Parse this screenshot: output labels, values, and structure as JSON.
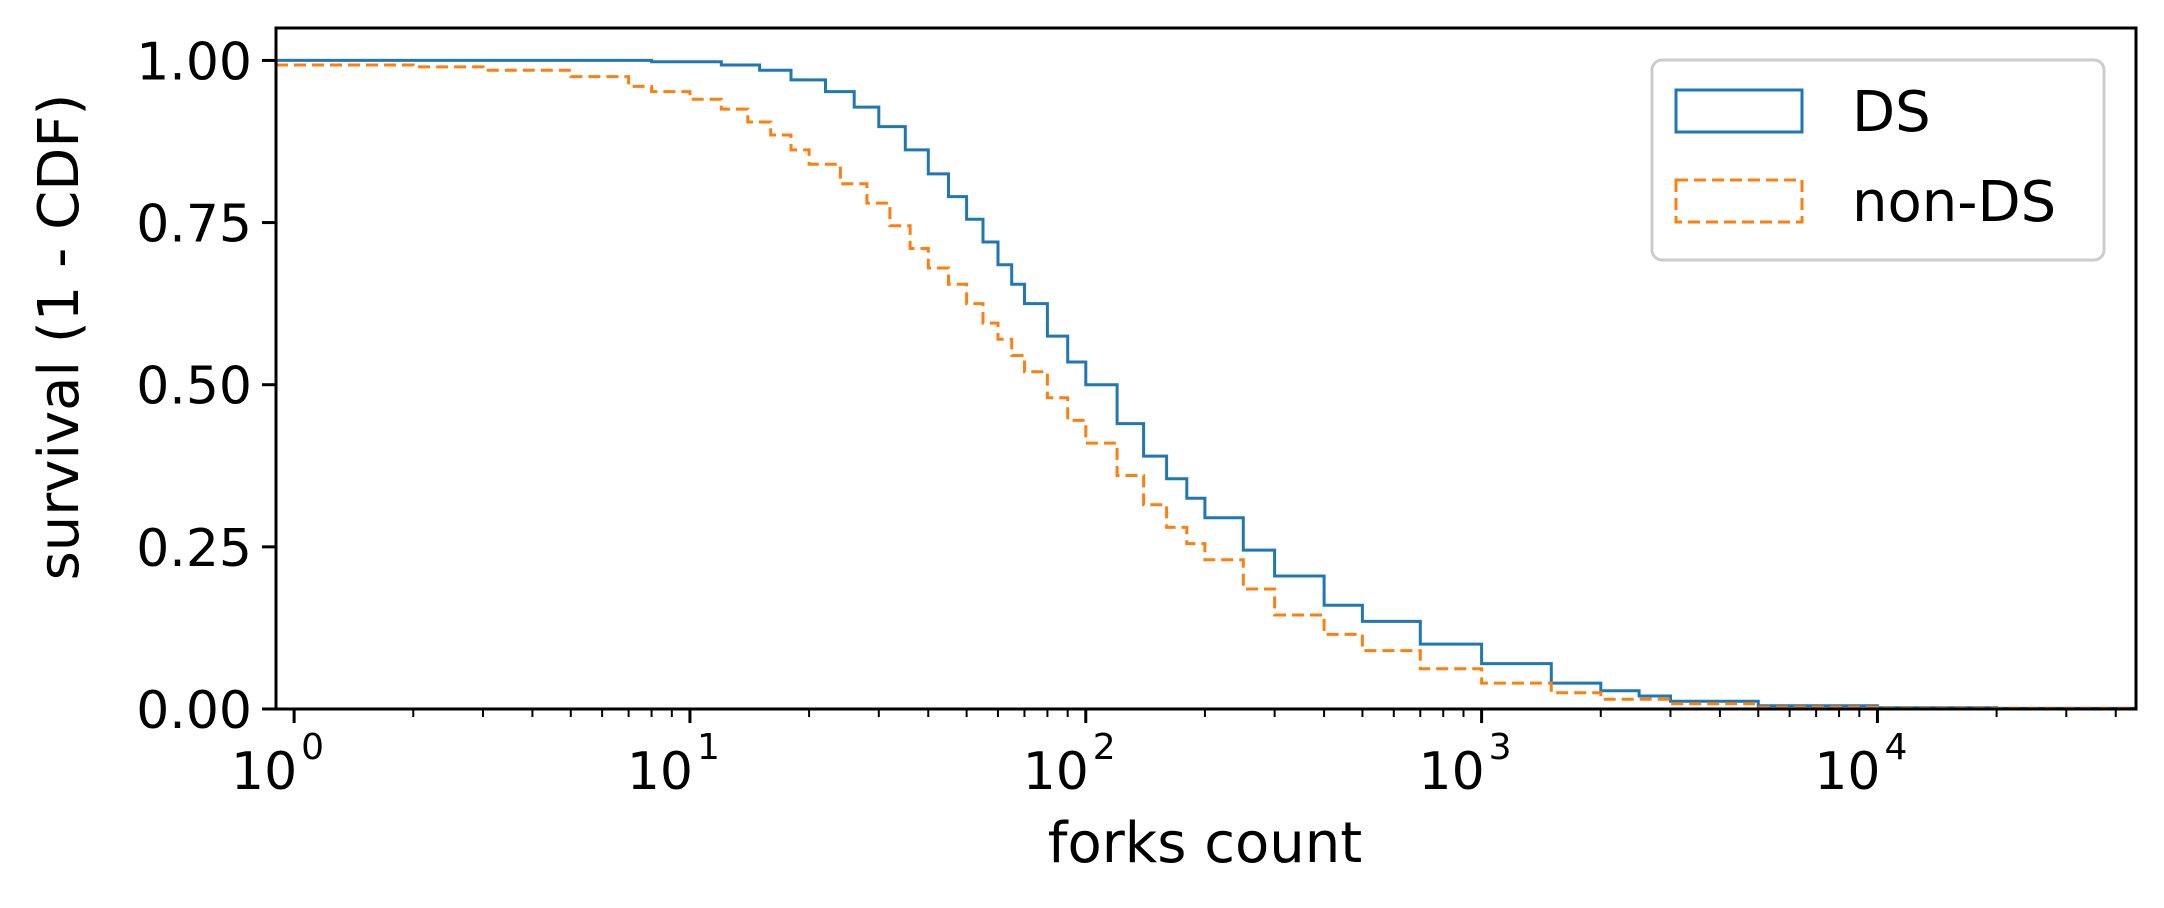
{
  "chart_data": {
    "type": "line",
    "subtype": "step",
    "title": "",
    "xlabel": "forks count",
    "ylabel": "survival (1 - CDF)",
    "xscale": "log",
    "xlim": [
      0.9,
      45000
    ],
    "ylim": [
      0,
      1.05
    ],
    "grid": false,
    "legend_position": "top-right",
    "x_ticks": [
      {
        "value": 1,
        "base": "10",
        "exp": "0"
      },
      {
        "value": 10,
        "base": "10",
        "exp": "1"
      },
      {
        "value": 100,
        "base": "10",
        "exp": "2"
      },
      {
        "value": 1000,
        "base": "10",
        "exp": "3"
      },
      {
        "value": 10000,
        "base": "10",
        "exp": "4"
      }
    ],
    "y_ticks": [
      {
        "value": 0.0,
        "label": "0.00"
      },
      {
        "value": 0.25,
        "label": "0.25"
      },
      {
        "value": 0.5,
        "label": "0.50"
      },
      {
        "value": 0.75,
        "label": "0.75"
      },
      {
        "value": 1.0,
        "label": "1.00"
      }
    ],
    "series": [
      {
        "name": "DS",
        "color": "#1f77b4",
        "line_style": "solid",
        "x": [
          0.9,
          3,
          8,
          12,
          15,
          18,
          22,
          26,
          30,
          35,
          40,
          45,
          50,
          55,
          60,
          65,
          70,
          80,
          90,
          100,
          120,
          140,
          160,
          180,
          200,
          250,
          300,
          400,
          500,
          700,
          1000,
          1500,
          2000,
          2500,
          3000,
          5000,
          10000,
          20000,
          45000
        ],
        "y": [
          1.0,
          1.0,
          0.998,
          0.993,
          0.985,
          0.97,
          0.952,
          0.928,
          0.898,
          0.862,
          0.825,
          0.79,
          0.755,
          0.72,
          0.685,
          0.655,
          0.625,
          0.575,
          0.535,
          0.5,
          0.44,
          0.39,
          0.355,
          0.325,
          0.295,
          0.245,
          0.205,
          0.16,
          0.135,
          0.1,
          0.07,
          0.04,
          0.028,
          0.02,
          0.012,
          0.005,
          0.002,
          0.001,
          0.0
        ]
      },
      {
        "name": "non-DS",
        "color": "#ff7f0e",
        "line_style": "dashed",
        "x": [
          0.9,
          2,
          3,
          5,
          7,
          8,
          10,
          12,
          14,
          16,
          18,
          20,
          24,
          28,
          32,
          36,
          40,
          45,
          50,
          55,
          60,
          65,
          70,
          80,
          90,
          100,
          120,
          140,
          160,
          180,
          200,
          250,
          300,
          400,
          500,
          700,
          1000,
          1500,
          2000,
          3000,
          5000,
          10000,
          45000
        ],
        "y": [
          0.993,
          0.99,
          0.985,
          0.975,
          0.96,
          0.952,
          0.94,
          0.925,
          0.905,
          0.885,
          0.862,
          0.84,
          0.81,
          0.78,
          0.745,
          0.71,
          0.68,
          0.655,
          0.625,
          0.595,
          0.57,
          0.545,
          0.52,
          0.48,
          0.445,
          0.41,
          0.36,
          0.315,
          0.28,
          0.255,
          0.23,
          0.185,
          0.145,
          0.115,
          0.09,
          0.062,
          0.04,
          0.025,
          0.015,
          0.008,
          0.003,
          0.001,
          0.0
        ]
      }
    ]
  }
}
